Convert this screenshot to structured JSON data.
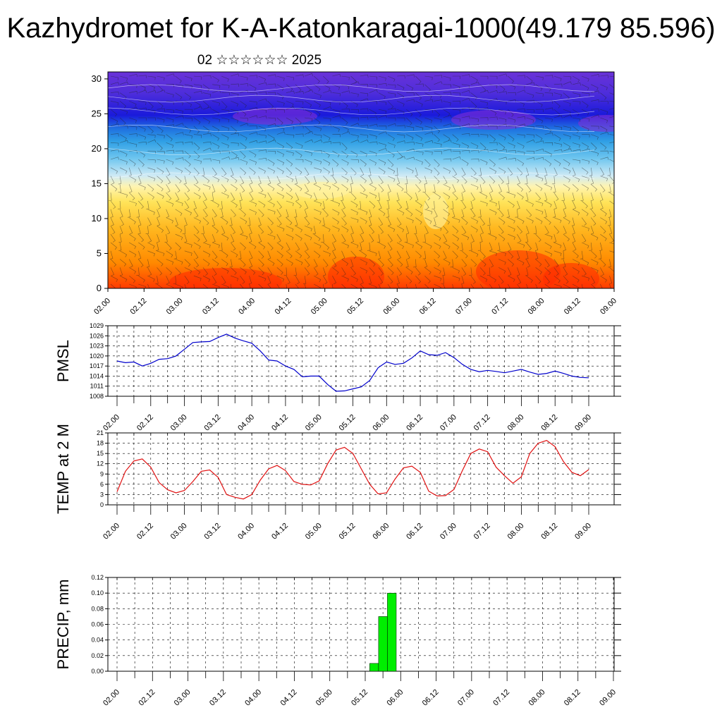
{
  "header": {
    "title": "Kazhydromet for K-A-Katonkaragai-1000(49.179 85.596)",
    "subtitle": "02 ☆☆☆☆☆☆ 2025"
  },
  "time_ticks": [
    "02.00",
    "02.12",
    "03.00",
    "03.12",
    "04.00",
    "04.12",
    "05.00",
    "05.12",
    "06.00",
    "06.12",
    "07.00",
    "07.12",
    "08.00",
    "08.12",
    "09.00"
  ],
  "chart_data": [
    {
      "type": "heatmap",
      "id": "cross-section",
      "x_ticks": [
        "02.00",
        "02.12",
        "03.00",
        "03.12",
        "04.00",
        "04.12",
        "05.00",
        "05.12",
        "06.00",
        "06.12",
        "07.00",
        "07.12",
        "08.00",
        "08.12",
        "09.00"
      ],
      "y_ticks": [
        0,
        5,
        10,
        15,
        20,
        25,
        30
      ],
      "ylim": [
        0,
        31
      ],
      "colors": {
        "warm": "#ff3300",
        "mid": "#ffe45a",
        "pale": "#cfeaf5",
        "cool": "#2f9fe5",
        "cold": "#1a1adb",
        "coldest": "#7a2fd6"
      }
    },
    {
      "type": "line",
      "id": "pmsl",
      "ylabel": "PMSL",
      "y_ticks": [
        1008,
        1011,
        1014,
        1017,
        1020,
        1023,
        1026,
        1029
      ],
      "ylim": [
        1008,
        1029
      ],
      "x_ticks": [
        "02.00",
        "02.12",
        "03.00",
        "03.12",
        "04.00",
        "04.12",
        "05.00",
        "05.12",
        "06.00",
        "06.12",
        "07.00",
        "07.12",
        "08.00",
        "08.12",
        "09.00"
      ],
      "line_color": "#0000cc",
      "x": [
        0,
        3,
        6,
        9,
        12,
        15,
        18,
        21,
        24,
        27,
        30,
        33,
        36,
        39,
        42,
        45,
        48,
        51,
        54,
        57,
        60,
        63,
        66,
        69,
        72,
        75,
        78,
        81,
        84,
        87,
        90,
        93,
        96,
        99,
        102,
        105,
        108,
        111,
        114,
        117,
        120,
        123,
        126,
        129,
        132,
        135,
        138,
        141,
        144,
        147,
        150,
        153,
        156,
        159,
        162,
        165,
        168
      ],
      "values": [
        1018.5,
        1018,
        1018.2,
        1017,
        1017.8,
        1019,
        1019.2,
        1020,
        1022,
        1024,
        1024.2,
        1024.3,
        1025.5,
        1026.5,
        1025.3,
        1024.5,
        1023.8,
        1021.5,
        1018.8,
        1018.5,
        1017,
        1016,
        1013.8,
        1014,
        1014,
        1011.5,
        1009.5,
        1009.6,
        1010.2,
        1010.8,
        1012.7,
        1016.5,
        1018.2,
        1017.5,
        1017.8,
        1019.4,
        1021.5,
        1020.4,
        1020.2,
        1021,
        1019.5,
        1017.5,
        1016,
        1015.3,
        1015.7,
        1015.4,
        1015,
        1015.5,
        1016,
        1015.2,
        1014.5,
        1014.8,
        1015.5,
        1014.8,
        1014,
        1013.6,
        1013.5
      ]
    },
    {
      "type": "line",
      "id": "temp",
      "ylabel": "TEMP at 2 M",
      "y_ticks": [
        0,
        3,
        6,
        9,
        12,
        15,
        18,
        21
      ],
      "ylim": [
        0,
        21
      ],
      "x_ticks": [
        "02.00",
        "02.12",
        "03.00",
        "03.12",
        "04.00",
        "04.12",
        "05.00",
        "05.12",
        "06.00",
        "06.12",
        "07.00",
        "07.12",
        "08.00",
        "08.12",
        "09.00"
      ],
      "line_color": "#e01010",
      "x": [
        0,
        3,
        6,
        9,
        12,
        15,
        18,
        21,
        24,
        27,
        30,
        33,
        36,
        39,
        42,
        45,
        48,
        51,
        54,
        57,
        60,
        63,
        66,
        69,
        72,
        75,
        78,
        81,
        84,
        87,
        90,
        93,
        96,
        99,
        102,
        105,
        108,
        111,
        114,
        117,
        120,
        123,
        126,
        129,
        132,
        135,
        138,
        141,
        144,
        147,
        150,
        153,
        156,
        159,
        162,
        165,
        168
      ],
      "values": [
        3.8,
        9.8,
        12.8,
        13.4,
        11,
        6.5,
        4.4,
        3.5,
        4.2,
        6.8,
        9.8,
        10.2,
        8,
        3,
        2.2,
        1.7,
        3,
        7.2,
        10.5,
        11.5,
        10,
        6.8,
        6,
        5.8,
        7,
        12,
        16,
        16.8,
        15,
        10.5,
        6,
        3.2,
        3.5,
        7.5,
        10.8,
        11.3,
        9.5,
        4,
        2.6,
        2.7,
        4.5,
        10,
        15,
        16.3,
        15.5,
        11,
        8.5,
        6.3,
        8.2,
        15,
        18,
        18.8,
        17,
        12.6,
        9.5,
        8.5,
        10.3
      ]
    },
    {
      "type": "bar",
      "id": "precip",
      "ylabel": "PRECIP, mm",
      "y_ticks": [
        "0.00",
        "0.02",
        "0.04",
        "0.06",
        "0.08",
        "0.10",
        "0.12"
      ],
      "ylim": [
        0,
        0.12
      ],
      "x_ticks": [
        "02.00",
        "02.12",
        "03.00",
        "03.12",
        "04.00",
        "04.12",
        "05.00",
        "05.12",
        "06.00",
        "06.12",
        "07.00",
        "07.12",
        "08.00",
        "08.12",
        "09.00"
      ],
      "bar_color": "#00ee00",
      "bars": [
        {
          "x": 87,
          "value": 0.01
        },
        {
          "x": 90,
          "value": 0.07
        },
        {
          "x": 93,
          "value": 0.1
        }
      ]
    }
  ]
}
